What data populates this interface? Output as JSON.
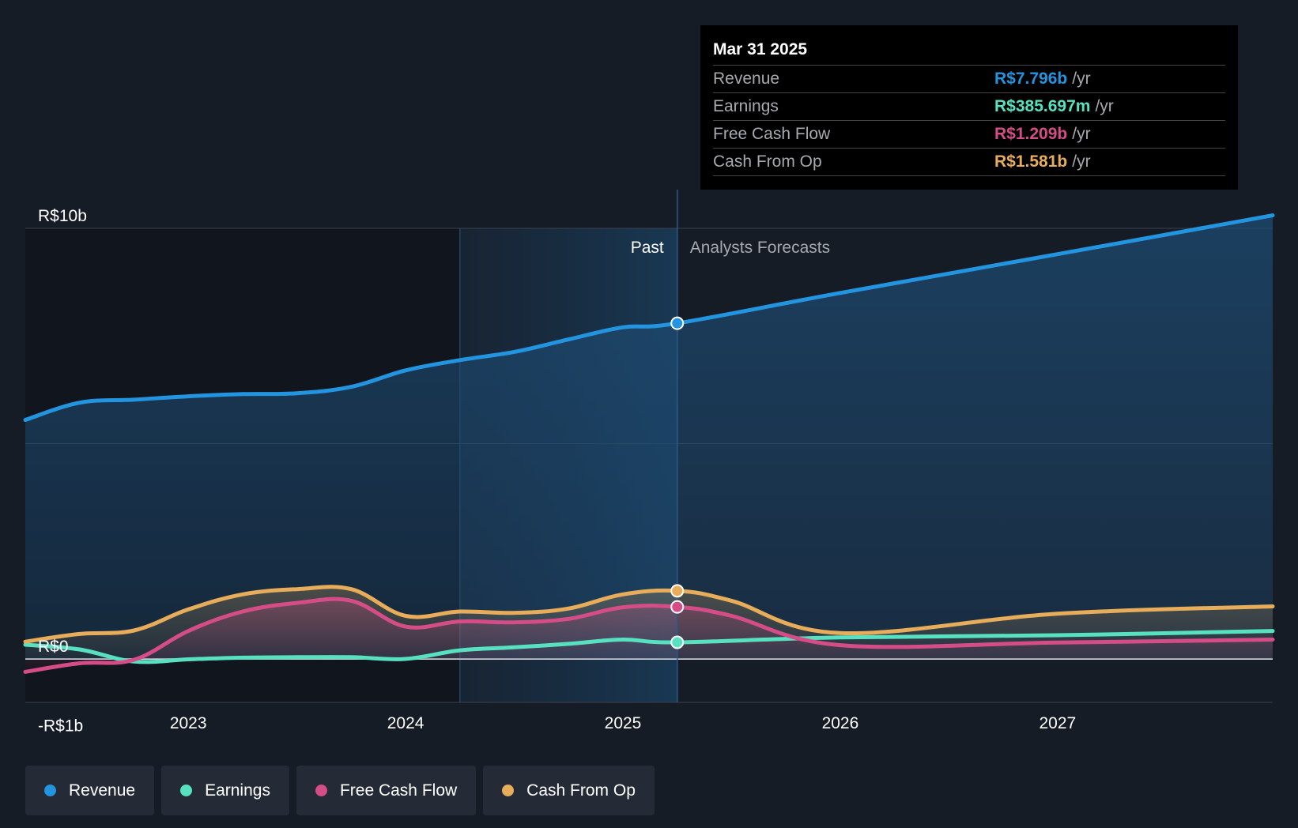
{
  "chart_data": {
    "type": "area",
    "x_ticks": [
      "2023",
      "2024",
      "2025",
      "2026",
      "2027"
    ],
    "x_tick_values": [
      2023,
      2024,
      2025,
      2026,
      2027
    ],
    "xlim": [
      2022.25,
      2027.99
    ],
    "ylim": [
      -1,
      10
    ],
    "y_ticks": [
      {
        "value": 10,
        "label": "R$10b"
      },
      {
        "value": 0,
        "label": "R$0"
      },
      {
        "value": -1,
        "label": "-R$1b"
      }
    ],
    "y_gridlines": [
      10,
      5,
      0
    ],
    "past_label": "Past",
    "forecast_label": "Analysts Forecasts",
    "split_x": 2025.25,
    "shade_start_x": 2024.25,
    "series": [
      {
        "name": "Revenue",
        "color": "#2394df",
        "fill": true,
        "points": [
          [
            2022.25,
            5.55
          ],
          [
            2022.5,
            5.95
          ],
          [
            2022.75,
            6.02
          ],
          [
            2023.0,
            6.1
          ],
          [
            2023.25,
            6.15
          ],
          [
            2023.5,
            6.17
          ],
          [
            2023.75,
            6.32
          ],
          [
            2024.0,
            6.7
          ],
          [
            2024.25,
            6.94
          ],
          [
            2024.5,
            7.13
          ],
          [
            2024.75,
            7.42
          ],
          [
            2025.0,
            7.7
          ],
          [
            2025.25,
            7.796
          ],
          [
            2026.0,
            8.5
          ],
          [
            2027.0,
            9.4
          ],
          [
            2027.99,
            10.3
          ]
        ]
      },
      {
        "name": "Earnings",
        "color": "#58e1c1",
        "fill": false,
        "points": [
          [
            2022.25,
            0.33
          ],
          [
            2022.5,
            0.22
          ],
          [
            2022.75,
            -0.06
          ],
          [
            2023.0,
            -0.01
          ],
          [
            2023.25,
            0.03
          ],
          [
            2023.5,
            0.04
          ],
          [
            2023.75,
            0.04
          ],
          [
            2024.0,
            0.0
          ],
          [
            2024.25,
            0.2
          ],
          [
            2024.5,
            0.27
          ],
          [
            2024.75,
            0.35
          ],
          [
            2025.0,
            0.45
          ],
          [
            2025.25,
            0.386
          ],
          [
            2026.0,
            0.5
          ],
          [
            2027.0,
            0.55
          ],
          [
            2027.99,
            0.65
          ]
        ]
      },
      {
        "name": "Free Cash Flow",
        "color": "#d44d86",
        "fill": false,
        "points": [
          [
            2022.25,
            -0.3
          ],
          [
            2022.5,
            -0.1
          ],
          [
            2022.75,
            -0.02
          ],
          [
            2023.0,
            0.65
          ],
          [
            2023.25,
            1.1
          ],
          [
            2023.5,
            1.3
          ],
          [
            2023.75,
            1.35
          ],
          [
            2024.0,
            0.75
          ],
          [
            2024.25,
            0.87
          ],
          [
            2024.5,
            0.85
          ],
          [
            2024.75,
            0.93
          ],
          [
            2025.0,
            1.2
          ],
          [
            2025.25,
            1.209
          ],
          [
            2025.5,
            1.0
          ],
          [
            2026.0,
            0.32
          ],
          [
            2027.0,
            0.38
          ],
          [
            2027.99,
            0.45
          ]
        ]
      },
      {
        "name": "Cash From Op",
        "color": "#e8ad5a",
        "fill": false,
        "points": [
          [
            2022.25,
            0.4
          ],
          [
            2022.5,
            0.58
          ],
          [
            2022.75,
            0.66
          ],
          [
            2023.0,
            1.15
          ],
          [
            2023.25,
            1.5
          ],
          [
            2023.5,
            1.62
          ],
          [
            2023.75,
            1.62
          ],
          [
            2024.0,
            1.0
          ],
          [
            2024.25,
            1.1
          ],
          [
            2024.5,
            1.07
          ],
          [
            2024.75,
            1.17
          ],
          [
            2025.0,
            1.5
          ],
          [
            2025.25,
            1.581
          ],
          [
            2025.5,
            1.35
          ],
          [
            2026.0,
            0.6
          ],
          [
            2027.0,
            1.05
          ],
          [
            2027.99,
            1.22
          ]
        ]
      }
    ],
    "tooltip": {
      "date": "Mar 31 2025",
      "rows": [
        {
          "label": "Revenue",
          "value": "R$7.796b",
          "unit": "/yr",
          "color": "#2394df"
        },
        {
          "label": "Earnings",
          "value": "R$385.697m",
          "unit": "/yr",
          "color": "#58e1c1"
        },
        {
          "label": "Free Cash Flow",
          "value": "R$1.209b",
          "unit": "/yr",
          "color": "#d44d86"
        },
        {
          "label": "Cash From Op",
          "value": "R$1.581b",
          "unit": "/yr",
          "color": "#e8ad5a"
        }
      ]
    }
  },
  "legend": [
    {
      "label": "Revenue",
      "color": "#2394df"
    },
    {
      "label": "Earnings",
      "color": "#58e1c1"
    },
    {
      "label": "Free Cash Flow",
      "color": "#d44d86"
    },
    {
      "label": "Cash From Op",
      "color": "#e8ad5a"
    }
  ]
}
